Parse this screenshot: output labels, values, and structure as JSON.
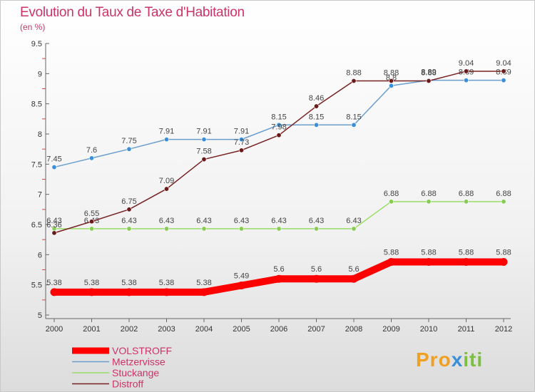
{
  "title": "Evolution du Taux de Taxe d'Habitation",
  "subtitle": "(en %)",
  "logo": {
    "part1": "Pro",
    "part2": "x",
    "part3": "iti"
  },
  "chart_data": {
    "type": "line",
    "x": [
      "2000",
      "2001",
      "2002",
      "2003",
      "2004",
      "2005",
      "2006",
      "2007",
      "2008",
      "2009",
      "2010",
      "2011",
      "2012"
    ],
    "ylim": [
      5,
      9.5
    ],
    "yticks": [
      "5",
      "5.5",
      "6",
      "6.5",
      "7",
      "7.5",
      "8",
      "8.5",
      "9",
      "9.5"
    ],
    "grid": false,
    "legend": "bottom-left",
    "series": [
      {
        "name": "VOLSTROFF",
        "color": "#ff0000",
        "width": 10,
        "values": [
          5.38,
          5.38,
          5.38,
          5.38,
          5.38,
          5.49,
          5.6,
          5.6,
          5.6,
          5.88,
          5.88,
          5.88,
          5.88
        ],
        "labels": [
          "5.38",
          "5.38",
          "5.38",
          "5.38",
          "5.38",
          "5.49",
          "5.6",
          "5.6",
          "5.6",
          "5.88",
          "5.88",
          "5.88",
          "5.88"
        ]
      },
      {
        "name": "Metzervisse",
        "color": "#6a9ecc",
        "width": 1.5,
        "values": [
          7.45,
          7.6,
          7.75,
          7.91,
          7.91,
          7.91,
          8.15,
          8.15,
          8.15,
          8.8,
          8.89,
          8.89,
          8.89
        ],
        "labels": [
          "7.45",
          "7.6",
          "7.75",
          "7.91",
          "7.91",
          "7.91",
          "8.15",
          "8.15",
          "8.15",
          "8.8",
          "8.89",
          "8.89",
          "8.89"
        ]
      },
      {
        "name": "Stuckange",
        "color": "#99dd66",
        "width": 1.5,
        "values": [
          6.43,
          6.43,
          6.43,
          6.43,
          6.43,
          6.43,
          6.43,
          6.43,
          6.43,
          6.88,
          6.88,
          6.88,
          6.88
        ],
        "labels": [
          "6.43",
          "6.43",
          "6.43",
          "6.43",
          "6.43",
          "6.43",
          "6.43",
          "6.43",
          "6.43",
          "6.88",
          "6.88",
          "6.88",
          "6.88"
        ]
      },
      {
        "name": "Distroff",
        "color": "#772222",
        "width": 1.5,
        "values": [
          6.36,
          6.55,
          6.75,
          7.09,
          7.58,
          7.73,
          7.98,
          8.46,
          8.88,
          8.88,
          8.88,
          9.04,
          9.04
        ],
        "labels": [
          "6.36",
          "6.55",
          "6.75",
          "7.09",
          "7.58",
          "7.73",
          "7.98",
          "8.46",
          "8.88",
          "8.88",
          "8.88",
          "9.04",
          "9.04"
        ]
      }
    ]
  }
}
